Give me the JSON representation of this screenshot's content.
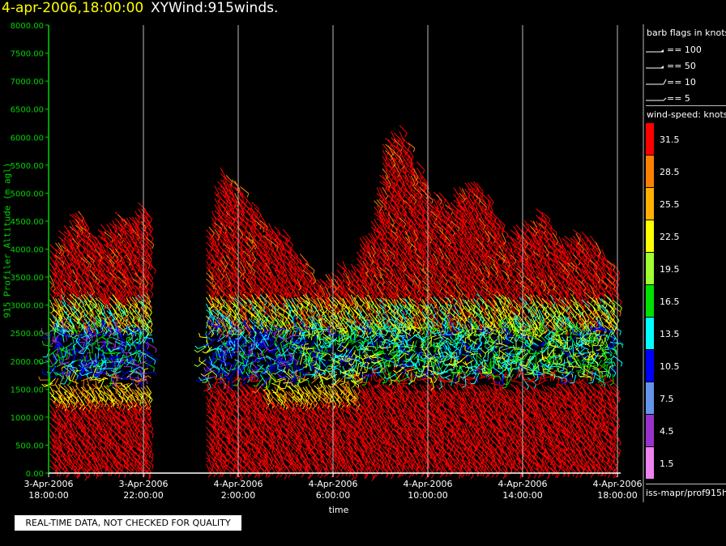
{
  "header": {
    "time": "4-apr-2006,18:00:00",
    "title": "XYWind:915winds."
  },
  "notice": "REAL-TIME DATA, NOT CHECKED FOR QUALITY",
  "footer_path": "iss-mapr/prof915h",
  "legend": {
    "barb_title": "barb flags in knots",
    "barb_entries": [
      "== 100",
      "== 50",
      "== 10",
      "== 5"
    ],
    "speed_title": "wind-speed: knots",
    "speed_levels": [
      {
        "label": "31.5",
        "color": "#ff0000"
      },
      {
        "label": "28.5",
        "color": "#ff8000"
      },
      {
        "label": "25.5",
        "color": "#ffb000"
      },
      {
        "label": "22.5",
        "color": "#ffff00"
      },
      {
        "label": "19.5",
        "color": "#a0ff30"
      },
      {
        "label": "16.5",
        "color": "#00e000"
      },
      {
        "label": "13.5",
        "color": "#00ffff"
      },
      {
        "label": "10.5",
        "color": "#0000ff"
      },
      {
        "label": "7.5",
        "color": "#6495ed"
      },
      {
        "label": "4.5",
        "color": "#9932cc"
      },
      {
        "label": "1.5",
        "color": "#ee82ee"
      }
    ]
  },
  "colors": {
    "axis_y": "#00d400",
    "axis_x": "#ffffff",
    "grid": "#bbbbbb",
    "background": "#000000"
  },
  "chart_data": {
    "type": "wind-barb time-height",
    "title": "XYWind:915winds.",
    "xlabel": "time",
    "ylabel": "915 Profiler Altitude (m agl)",
    "ylim": [
      0,
      8000
    ],
    "y_ticks": [
      "0.00",
      "500.00",
      "1000.00",
      "1500.00",
      "2000.00",
      "2500.00",
      "3000.00",
      "3500.00",
      "4000.00",
      "4500.00",
      "5000.00",
      "5500.00",
      "6000.00",
      "6500.00",
      "7000.00",
      "7500.00",
      "8000.00"
    ],
    "x_ticks": [
      {
        "date": "3-Apr-2006",
        "time": "18:00:00",
        "hours": 0
      },
      {
        "date": "3-Apr-2006",
        "time": "22:00:00",
        "hours": 4
      },
      {
        "date": "4-Apr-2006",
        "time": "2:00:00",
        "hours": 8
      },
      {
        "date": "4-Apr-2006",
        "time": "6:00:00",
        "hours": 12
      },
      {
        "date": "4-Apr-2006",
        "time": "10:00:00",
        "hours": 16
      },
      {
        "date": "4-Apr-2006",
        "time": "14:00:00",
        "hours": 20
      },
      {
        "date": "4-Apr-2006",
        "time": "18:00:00",
        "hours": 24
      }
    ],
    "profile_tops": [
      {
        "hours": 0.2,
        "top_m": 4100
      },
      {
        "hours": 0.8,
        "top_m": 4500
      },
      {
        "hours": 1.2,
        "top_m": 4700
      },
      {
        "hours": 2.0,
        "top_m": 4300
      },
      {
        "hours": 2.5,
        "top_m": 4500
      },
      {
        "hours": 3.2,
        "top_m": 4600
      },
      {
        "hours": 3.8,
        "top_m": 4800
      },
      {
        "hours": 6.6,
        "top_m": 4200
      },
      {
        "hours": 7.2,
        "top_m": 5500
      },
      {
        "hours": 7.8,
        "top_m": 5200
      },
      {
        "hours": 8.8,
        "top_m": 4700
      },
      {
        "hours": 9.4,
        "top_m": 4500
      },
      {
        "hours": 10.2,
        "top_m": 4100
      },
      {
        "hours": 11.5,
        "top_m": 3500
      },
      {
        "hours": 12.8,
        "top_m": 3800
      },
      {
        "hours": 13.6,
        "top_m": 4500
      },
      {
        "hours": 14.2,
        "top_m": 6100
      },
      {
        "hours": 14.9,
        "top_m": 6100
      },
      {
        "hours": 16.0,
        "top_m": 5000
      },
      {
        "hours": 16.8,
        "top_m": 4900
      },
      {
        "hours": 17.6,
        "top_m": 5300
      },
      {
        "hours": 18.6,
        "top_m": 4900
      },
      {
        "hours": 19.2,
        "top_m": 4200
      },
      {
        "hours": 20.1,
        "top_m": 4500
      },
      {
        "hours": 20.7,
        "top_m": 4700
      },
      {
        "hours": 21.5,
        "top_m": 4200
      },
      {
        "hours": 22.3,
        "top_m": 4300
      },
      {
        "hours": 22.9,
        "top_m": 4200
      },
      {
        "hours": 23.6,
        "top_m": 3800
      }
    ]
  }
}
